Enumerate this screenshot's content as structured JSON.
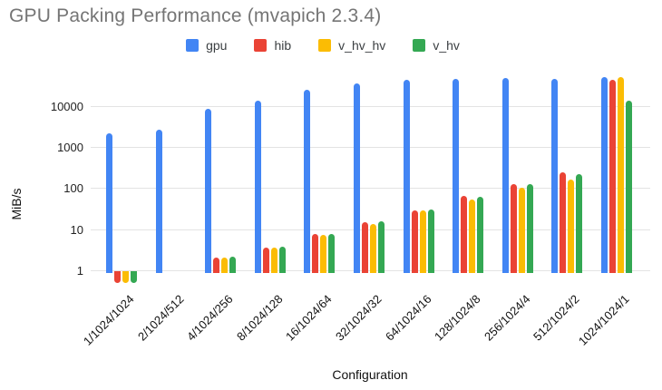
{
  "title": "GPU Packing Performance (mvapich 2.3.4)",
  "colors": {
    "title_text": "#757575",
    "legend_text": "#3c4043",
    "axis_text": "#111111",
    "gridline": "#e3e3e3",
    "gpu": "#4285F4",
    "hib": "#EA4335",
    "v_hv_hv": "#FBBC04",
    "v_hv": "#34A853"
  },
  "chart_data": {
    "type": "bar",
    "title": "GPU Packing Performance (mvapich 2.3.4)",
    "xlabel": "Configuration",
    "ylabel": "MiB/s",
    "y_scale": "log",
    "grid": true,
    "legend_position": "top",
    "y_ticks": [
      1,
      10,
      100,
      1000,
      10000
    ],
    "ylim": [
      0.4,
      60000
    ],
    "categories": [
      "1/1024/1024",
      "2/1024/512",
      "4/1024/256",
      "8/1024/128",
      "16/1024/64",
      "32/1024/32",
      "64/1024/16",
      "128/1024/8",
      "256/1024/4",
      "512/1024/2",
      "1024/1024/1"
    ],
    "series": [
      {
        "name": "gpu",
        "color": "#4285F4",
        "values": [
          2200,
          2650,
          8500,
          13400,
          24500,
          35000,
          42500,
          46000,
          47500,
          46000,
          50000
        ]
      },
      {
        "name": "hib",
        "color": "#EA4335",
        "values": [
          0.5,
          null,
          2.0,
          3.6,
          7.5,
          14.8,
          29,
          63,
          122,
          238,
          43500
        ]
      },
      {
        "name": "v_hv_hv",
        "color": "#FBBC04",
        "values": [
          0.5,
          null,
          2.0,
          3.5,
          7.4,
          13.5,
          28,
          52,
          104,
          162,
          50000
        ]
      },
      {
        "name": "v_hv",
        "color": "#34A853",
        "values": [
          0.5,
          null,
          2.1,
          3.7,
          7.7,
          15.3,
          30,
          62,
          126,
          222,
          13500
        ]
      }
    ]
  }
}
